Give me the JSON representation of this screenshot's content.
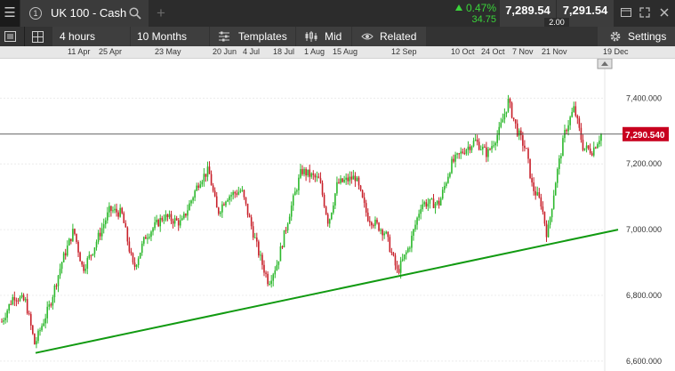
{
  "topbar": {
    "menu_icon": "hamburger-menu-icon",
    "tab_number": "1",
    "instrument": "UK 100 - Cash",
    "change_pct": "0.47%",
    "change_pts": "34.75",
    "sell_price": "7,289.54",
    "buy_price": "7,291.54",
    "spread": "2.00"
  },
  "toolbar": {
    "interval": "4 hours",
    "range": "10 Months",
    "templates": "Templates",
    "price_mode": "Mid",
    "related": "Related",
    "settings": "Settings"
  },
  "colors": {
    "up": "#2db82d",
    "down": "#c8202a",
    "trendline": "#119a11",
    "current_price_bg": "#c8001e",
    "positive_change": "#3ad43a"
  },
  "chart_data": {
    "type": "candlestick",
    "instrument": "UK 100 - Cash",
    "x_tick_labels": [
      "11 Apr",
      "25 Apr",
      "23 May",
      "20 Jun",
      "4 Jul",
      "18 Jul",
      "1 Aug",
      "15 Aug",
      "12 Sep",
      "10 Oct",
      "24 Oct",
      "7 Nov",
      "21 Nov",
      "19 Dec"
    ],
    "y_tick_labels": [
      "7,400.000",
      "7,200.000",
      "7,000.000",
      "6,800.000",
      "6,600.000"
    ],
    "y_ticks": [
      7400,
      7200,
      7000,
      6800,
      6600
    ],
    "ylim": [
      6570,
      7520
    ],
    "current_price": 7290.54,
    "current_price_label": "7,290.540",
    "trendline": {
      "start": 6625,
      "end": 7000
    },
    "keypoints": [
      [
        0,
        6720
      ],
      [
        0.02,
        6800
      ],
      [
        0.04,
        6780
      ],
      [
        0.055,
        6650
      ],
      [
        0.065,
        6700
      ],
      [
        0.08,
        6770
      ],
      [
        0.1,
        6900
      ],
      [
        0.12,
        7000
      ],
      [
        0.135,
        6880
      ],
      [
        0.15,
        6930
      ],
      [
        0.18,
        7060
      ],
      [
        0.2,
        7050
      ],
      [
        0.22,
        6880
      ],
      [
        0.24,
        6980
      ],
      [
        0.27,
        7040
      ],
      [
        0.3,
        7020
      ],
      [
        0.33,
        7150
      ],
      [
        0.345,
        7180
      ],
      [
        0.36,
        7050
      ],
      [
        0.375,
        7100
      ],
      [
        0.4,
        7120
      ],
      [
        0.43,
        6920
      ],
      [
        0.445,
        6840
      ],
      [
        0.46,
        6900
      ],
      [
        0.48,
        7050
      ],
      [
        0.5,
        7180
      ],
      [
        0.53,
        7150
      ],
      [
        0.545,
        7020
      ],
      [
        0.56,
        7140
      ],
      [
        0.59,
        7160
      ],
      [
        0.61,
        7040
      ],
      [
        0.64,
        6990
      ],
      [
        0.66,
        6870
      ],
      [
        0.68,
        6950
      ],
      [
        0.7,
        7080
      ],
      [
        0.73,
        7080
      ],
      [
        0.75,
        7200
      ],
      [
        0.77,
        7240
      ],
      [
        0.79,
        7270
      ],
      [
        0.81,
        7230
      ],
      [
        0.83,
        7300
      ],
      [
        0.845,
        7390
      ],
      [
        0.86,
        7300
      ],
      [
        0.875,
        7240
      ],
      [
        0.885,
        7130
      ],
      [
        0.9,
        7080
      ],
      [
        0.91,
        6980
      ],
      [
        0.925,
        7160
      ],
      [
        0.94,
        7300
      ],
      [
        0.955,
        7370
      ],
      [
        0.97,
        7250
      ],
      [
        0.985,
        7240
      ],
      [
        1,
        7290
      ]
    ]
  }
}
